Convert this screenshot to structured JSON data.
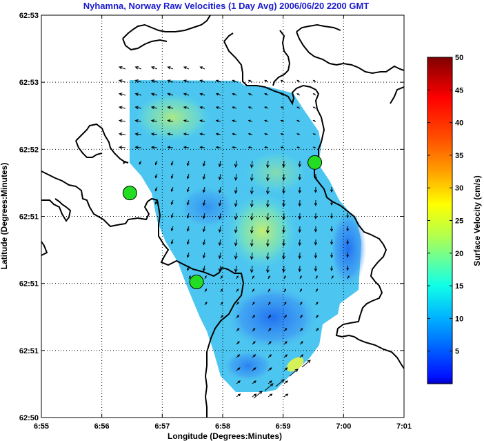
{
  "chart_data": {
    "type": "heatmap",
    "title": "Nyhamna, Norway Raw Velocities (1 Day Avg) 2006/06/20 2200 GMT",
    "xlabel": "Longitude (Degrees:Minutes)",
    "ylabel": "Latitude (Degrees:Minutes)",
    "x_ticks": [
      "6:55",
      "6:56",
      "6:57",
      "6:58",
      "6:59",
      "7:00",
      "7:01"
    ],
    "y_ticks": [
      "62:50",
      "62:51",
      "62:51",
      "62:51",
      "62:52",
      "62:53",
      "62:53"
    ],
    "grid": true,
    "colorbar": {
      "label": "Surface Velocity (cm/s)",
      "min": 0,
      "max": 50,
      "ticks": [
        "5",
        "10",
        "15",
        "20",
        "25",
        "30",
        "35",
        "40",
        "45",
        "50"
      ]
    },
    "stations": [
      {
        "lon_frac": 0.244,
        "lat_frac": 0.558,
        "color": "#22dd22"
      },
      {
        "lon_frac": 0.428,
        "lat_frac": 0.337,
        "color": "#22dd22"
      },
      {
        "lon_frac": 0.754,
        "lat_frac": 0.634,
        "color": "#22dd22"
      }
    ]
  }
}
